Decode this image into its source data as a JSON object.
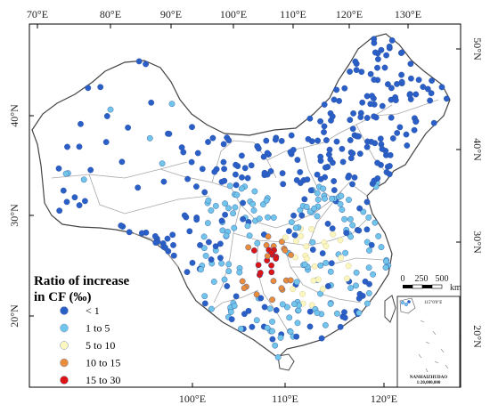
{
  "map": {
    "top_ticks": [
      "70°E",
      "80°E",
      "90°E",
      "100°E",
      "110°E",
      "120°E",
      "130°E"
    ],
    "bottom_ticks": [
      "100°E",
      "110°E",
      "120°E"
    ],
    "left_ticks": [
      "40°N",
      "30°N",
      "20°N"
    ],
    "right_ticks": [
      "50°N",
      "40°N",
      "30°N",
      "20°N"
    ],
    "legend": {
      "title_line1": "Ratio of increase",
      "title_line2": "in CF (‰)",
      "classes": [
        {
          "label": "< 1",
          "color": "#2a5fc8"
        },
        {
          "label": "1 to 5",
          "color": "#72c5ea"
        },
        {
          "label": "5 to 10",
          "color": "#fbf6c0"
        },
        {
          "label": "10 to 15",
          "color": "#e98c3b"
        },
        {
          "label": "15 to 30",
          "color": "#dc1414"
        }
      ]
    },
    "scale_bar": {
      "labels": [
        "0",
        "250",
        "500"
      ],
      "unit": "km"
    },
    "inset": {
      "coordinate_label": "115°0'0\"E",
      "name": "NANHAIZHUDAO",
      "scale": "1:20,000,000"
    },
    "colors": {
      "border": "#444444",
      "provinces": "#a8a8a8",
      "land": "#ffffff",
      "frame": "#000000"
    }
  }
}
